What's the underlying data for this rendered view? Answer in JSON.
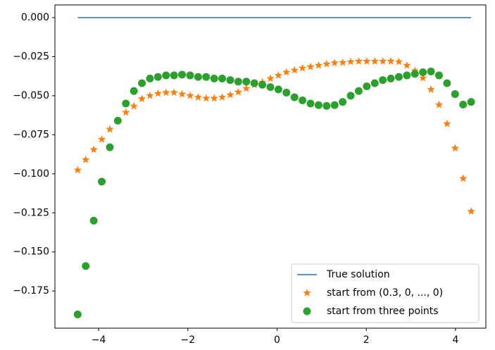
{
  "chart_data": {
    "type": "line_scatter",
    "xlim": [
      -4.98,
      4.68
    ],
    "ylim": [
      -0.1988,
      0.0081
    ],
    "xticks": [
      {
        "value": -4,
        "label": "−4"
      },
      {
        "value": -2,
        "label": "−2"
      },
      0,
      2,
      4
    ],
    "yticks": [
      {
        "value": 0,
        "label": "0.000"
      },
      {
        "value": -0.025,
        "label": "−0.025"
      },
      {
        "value": -0.05,
        "label": "−0.050"
      },
      {
        "value": -0.075,
        "label": "−0.075"
      },
      {
        "value": -0.1,
        "label": "−0.100"
      },
      {
        "value": -0.125,
        "label": "−0.125"
      },
      {
        "value": -0.15,
        "label": "−0.150"
      },
      {
        "value": -0.175,
        "label": "−0.175"
      }
    ],
    "legend": "lower right",
    "series": [
      {
        "name": "True solution",
        "color": "#1f77b4",
        "marker": "line",
        "x": [
          -4.47,
          4.35
        ],
        "values": [
          0,
          0
        ]
      },
      {
        "name": "start from (0.3, 0, ..., 0)",
        "color": "#ff7f0e",
        "marker": "star",
        "x": [
          -4.47,
          -4.29,
          -4.11,
          -3.93,
          -3.75,
          -3.57,
          -3.39,
          -3.21,
          -3.03,
          -2.85,
          -2.67,
          -2.49,
          -2.31,
          -2.13,
          -1.95,
          -1.77,
          -1.59,
          -1.41,
          -1.23,
          -1.05,
          -0.87,
          -0.69,
          -0.51,
          -0.33,
          -0.15,
          0.03,
          0.21,
          0.39,
          0.57,
          0.75,
          0.93,
          1.11,
          1.29,
          1.47,
          1.65,
          1.83,
          2.01,
          2.19,
          2.37,
          2.55,
          2.73,
          2.91,
          3.09,
          3.27,
          3.45,
          3.63,
          3.81,
          3.99,
          4.17,
          4.35
        ],
        "values": [
          -0.0976,
          -0.091,
          -0.0845,
          -0.078,
          -0.0715,
          -0.066,
          -0.0607,
          -0.0567,
          -0.052,
          -0.05,
          -0.0486,
          -0.048,
          -0.048,
          -0.049,
          -0.05,
          -0.051,
          -0.0517,
          -0.0517,
          -0.051,
          -0.0495,
          -0.0477,
          -0.0454,
          -0.043,
          -0.0414,
          -0.039,
          -0.037,
          -0.035,
          -0.0337,
          -0.0324,
          -0.0315,
          -0.0306,
          -0.0297,
          -0.029,
          -0.0288,
          -0.0283,
          -0.028,
          -0.028,
          -0.028,
          -0.028,
          -0.028,
          -0.0283,
          -0.0306,
          -0.034,
          -0.0387,
          -0.046,
          -0.0558,
          -0.068,
          -0.0836,
          -0.103,
          -0.124
        ]
      },
      {
        "name": "start from three points",
        "color": "#2ca02c",
        "marker": "circle",
        "x": [
          -4.47,
          -4.29,
          -4.11,
          -3.93,
          -3.75,
          -3.57,
          -3.39,
          -3.21,
          -3.03,
          -2.85,
          -2.67,
          -2.49,
          -2.31,
          -2.13,
          -1.95,
          -1.77,
          -1.59,
          -1.41,
          -1.23,
          -1.05,
          -0.87,
          -0.69,
          -0.51,
          -0.33,
          -0.15,
          0.03,
          0.21,
          0.39,
          0.57,
          0.75,
          0.93,
          1.11,
          1.29,
          1.47,
          1.65,
          1.83,
          2.01,
          2.19,
          2.37,
          2.55,
          2.73,
          2.91,
          3.09,
          3.27,
          3.45,
          3.63,
          3.81,
          3.99,
          4.17,
          4.35
        ],
        "values": [
          -0.19,
          -0.159,
          -0.13,
          -0.105,
          -0.083,
          -0.066,
          -0.055,
          -0.047,
          -0.042,
          -0.039,
          -0.038,
          -0.037,
          -0.037,
          -0.0365,
          -0.037,
          -0.038,
          -0.038,
          -0.039,
          -0.039,
          -0.04,
          -0.041,
          -0.041,
          -0.042,
          -0.043,
          -0.0445,
          -0.046,
          -0.048,
          -0.051,
          -0.053,
          -0.055,
          -0.056,
          -0.0565,
          -0.056,
          -0.054,
          -0.05,
          -0.047,
          -0.044,
          -0.042,
          -0.04,
          -0.039,
          -0.038,
          -0.037,
          -0.036,
          -0.035,
          -0.0345,
          -0.037,
          -0.042,
          -0.049,
          -0.0557,
          -0.054
        ]
      }
    ]
  }
}
